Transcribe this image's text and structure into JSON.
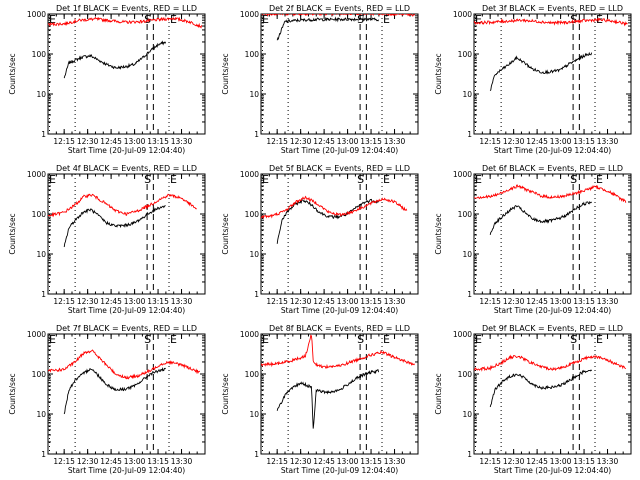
{
  "colors": {
    "events": "#000000",
    "lld": "#ff0000"
  },
  "shared": {
    "xlabel": "Start Time (20-Jul-09 12:04:40)",
    "ylabel": "Counts/sec",
    "x_ticks": [
      "12:15",
      "12:30",
      "12:45",
      "13:00",
      "13:15",
      "13:30"
    ],
    "y_ticks": [
      "1",
      "10",
      "100",
      "1000"
    ],
    "markers": {
      "dotted": [
        "E",
        "E"
      ],
      "dashed": "S"
    }
  },
  "chart_data": [
    {
      "type": "line",
      "title": "Det 1f BLACK = Events, RED = LLD",
      "ylog": true,
      "ylim": [
        1,
        1000
      ],
      "xlim": [
        "12:04:40",
        "13:45:00"
      ],
      "series": [
        {
          "name": "Events",
          "color": "#000000",
          "x": [
            "12:15",
            "12:18",
            "12:22",
            "12:27",
            "12:32",
            "12:37",
            "12:42",
            "12:48",
            "12:54",
            "13:00",
            "13:05",
            "13:10",
            "13:15",
            "13:20"
          ],
          "y": [
            25,
            60,
            70,
            85,
            90,
            70,
            55,
            45,
            48,
            55,
            80,
            120,
            170,
            200
          ]
        },
        {
          "name": "LLD",
          "color": "#ff0000",
          "x": [
            "12:04:40",
            "12:15",
            "12:25",
            "12:35",
            "12:45",
            "12:55",
            "13:05",
            "13:15",
            "13:25",
            "13:35",
            "13:43"
          ],
          "y": [
            550,
            570,
            700,
            750,
            680,
            620,
            650,
            720,
            780,
            640,
            480
          ]
        }
      ]
    },
    {
      "type": "line",
      "title": "Det 2f BLACK = Events, RED = LLD",
      "ylog": true,
      "ylim": [
        1,
        1000
      ],
      "xlim": [
        "12:04:40",
        "13:45:00"
      ],
      "series": [
        {
          "name": "Events",
          "color": "#000000",
          "x": [
            "12:15",
            "12:20",
            "12:30",
            "12:40",
            "12:50",
            "13:00",
            "13:10",
            "13:20"
          ],
          "y": [
            220,
            650,
            700,
            730,
            730,
            740,
            740,
            730
          ]
        },
        {
          "name": "LLD",
          "color": "#ff0000",
          "x": [
            "12:04:40",
            "12:20",
            "12:35",
            "12:50",
            "13:05",
            "13:20",
            "13:35",
            "13:43"
          ],
          "y": [
            1000,
            1020,
            1010,
            1030,
            1040,
            1020,
            1000,
            950
          ]
        }
      ]
    },
    {
      "type": "line",
      "title": "Det 3f BLACK = Events, RED = LLD",
      "ylog": true,
      "ylim": [
        1,
        1000
      ],
      "xlim": [
        "12:04:40",
        "13:45:00"
      ],
      "series": [
        {
          "name": "Events",
          "color": "#000000",
          "x": [
            "12:15",
            "12:18",
            "12:22",
            "12:27",
            "12:32",
            "12:37",
            "12:42",
            "12:48",
            "12:54",
            "13:00",
            "13:05",
            "13:10",
            "13:15",
            "13:20"
          ],
          "y": [
            12,
            30,
            40,
            55,
            80,
            60,
            42,
            35,
            36,
            40,
            55,
            70,
            90,
            105
          ]
        },
        {
          "name": "LLD",
          "color": "#ff0000",
          "x": [
            "12:04:40",
            "12:15",
            "12:25",
            "12:35",
            "12:45",
            "12:55",
            "13:05",
            "13:15",
            "13:25",
            "13:35",
            "13:43"
          ],
          "y": [
            600,
            620,
            660,
            700,
            650,
            600,
            620,
            680,
            720,
            650,
            550
          ]
        }
      ]
    },
    {
      "type": "line",
      "title": "Det 4f BLACK = Events, RED = LLD",
      "ylog": true,
      "ylim": [
        1,
        1000
      ],
      "xlim": [
        "12:04:40",
        "13:45:00"
      ],
      "series": [
        {
          "name": "Events",
          "color": "#000000",
          "x": [
            "12:15",
            "12:18",
            "12:22",
            "12:27",
            "12:32",
            "12:37",
            "12:42",
            "12:48",
            "12:54",
            "13:00",
            "13:05",
            "13:10",
            "13:15",
            "13:20"
          ],
          "y": [
            15,
            45,
            70,
            110,
            130,
            90,
            60,
            50,
            52,
            60,
            80,
            110,
            140,
            160
          ]
        },
        {
          "name": "LLD",
          "color": "#ff0000",
          "x": [
            "12:04:40",
            "12:15",
            "12:22",
            "12:28",
            "12:33",
            "12:40",
            "12:48",
            "12:55",
            "13:02",
            "13:10",
            "13:16",
            "13:22",
            "13:30",
            "13:40"
          ],
          "y": [
            90,
            110,
            170,
            280,
            300,
            200,
            120,
            100,
            120,
            170,
            230,
            300,
            250,
            130
          ]
        }
      ]
    },
    {
      "type": "line",
      "title": "Det 5f BLACK = Events, RED = LLD",
      "ylog": true,
      "ylim": [
        1,
        1000
      ],
      "xlim": [
        "12:04:40",
        "13:45:00"
      ],
      "series": [
        {
          "name": "Events",
          "color": "#000000",
          "x": [
            "12:15",
            "12:18",
            "12:22",
            "12:27",
            "12:32",
            "12:37",
            "12:42",
            "12:48",
            "12:54",
            "13:00",
            "13:05",
            "13:10",
            "13:15",
            "13:20"
          ],
          "y": [
            18,
            70,
            120,
            180,
            220,
            170,
            110,
            85,
            85,
            100,
            140,
            190,
            220,
            200
          ]
        },
        {
          "name": "LLD",
          "color": "#ff0000",
          "x": [
            "12:04:40",
            "12:12",
            "12:20",
            "12:27",
            "12:33",
            "12:40",
            "12:48",
            "12:55",
            "13:02",
            "13:10",
            "13:17",
            "13:23",
            "13:30",
            "13:38"
          ],
          "y": [
            85,
            90,
            120,
            200,
            260,
            190,
            110,
            95,
            110,
            150,
            200,
            240,
            200,
            120
          ]
        }
      ]
    },
    {
      "type": "line",
      "title": "Det 6f BLACK = Events, RED = LLD",
      "ylog": true,
      "ylim": [
        1,
        1000
      ],
      "xlim": [
        "12:04:40",
        "13:45:00"
      ],
      "series": [
        {
          "name": "Events",
          "color": "#000000",
          "x": [
            "12:15",
            "12:18",
            "12:22",
            "12:27",
            "12:32",
            "12:37",
            "12:42",
            "12:48",
            "12:54",
            "13:00",
            "13:05",
            "13:10",
            "13:15",
            "13:20"
          ],
          "y": [
            30,
            60,
            80,
            120,
            160,
            110,
            75,
            65,
            68,
            80,
            100,
            140,
            180,
            200
          ]
        },
        {
          "name": "LLD",
          "color": "#ff0000",
          "x": [
            "12:04:40",
            "12:15",
            "12:22",
            "12:28",
            "12:33",
            "12:40",
            "12:48",
            "12:55",
            "13:02",
            "13:10",
            "13:16",
            "13:22",
            "13:30",
            "13:42"
          ],
          "y": [
            260,
            270,
            330,
            430,
            500,
            380,
            280,
            260,
            280,
            330,
            400,
            480,
            380,
            200
          ]
        }
      ]
    },
    {
      "type": "line",
      "title": "Det 7f BLACK = Events, RED = LLD",
      "ylog": true,
      "ylim": [
        1,
        1000
      ],
      "xlim": [
        "12:04:40",
        "13:45:00"
      ],
      "series": [
        {
          "name": "Events",
          "color": "#000000",
          "x": [
            "12:15",
            "12:18",
            "12:22",
            "12:27",
            "12:32",
            "12:37",
            "12:42",
            "12:48",
            "12:54",
            "13:00",
            "13:05",
            "13:10",
            "13:15",
            "13:20"
          ],
          "y": [
            10,
            40,
            70,
            100,
            140,
            90,
            55,
            40,
            42,
            50,
            70,
            100,
            120,
            130
          ]
        },
        {
          "name": "LLD",
          "color": "#ff0000",
          "x": [
            "12:04:40",
            "12:15",
            "12:22",
            "12:28",
            "12:33",
            "12:40",
            "12:48",
            "12:55",
            "13:02",
            "13:10",
            "13:16",
            "13:22",
            "13:30",
            "13:42"
          ],
          "y": [
            120,
            130,
            200,
            350,
            380,
            200,
            100,
            80,
            90,
            120,
            170,
            200,
            170,
            110
          ]
        }
      ]
    },
    {
      "type": "line",
      "title": "Det 8f BLACK = Events, RED = LLD",
      "ylog": true,
      "ylim": [
        1,
        1000
      ],
      "xlim": [
        "12:04:40",
        "13:45:00"
      ],
      "series": [
        {
          "name": "Events",
          "color": "#000000",
          "x": [
            "12:15",
            "12:20",
            "12:25",
            "12:30",
            "12:35",
            "12:37",
            "12:38",
            "12:40",
            "12:45",
            "12:50",
            "12:55",
            "13:00",
            "13:05",
            "13:10",
            "13:15",
            "13:20"
          ],
          "y": [
            12,
            30,
            45,
            60,
            50,
            45,
            4,
            40,
            35,
            36,
            40,
            55,
            75,
            95,
            110,
            120
          ]
        },
        {
          "name": "LLD",
          "color": "#ff0000",
          "x": [
            "12:04:40",
            "12:15",
            "12:25",
            "12:33",
            "12:37",
            "12:38",
            "12:40",
            "12:45",
            "12:55",
            "13:05",
            "13:15",
            "13:22",
            "13:30",
            "13:43"
          ],
          "y": [
            170,
            180,
            220,
            280,
            1000,
            220,
            170,
            150,
            160,
            220,
            300,
            350,
            260,
            170
          ]
        }
      ]
    },
    {
      "type": "line",
      "title": "Det 9f BLACK = Events, RED = LLD",
      "ylog": true,
      "ylim": [
        1,
        1000
      ],
      "xlim": [
        "12:04:40",
        "13:45:00"
      ],
      "series": [
        {
          "name": "Events",
          "color": "#000000",
          "x": [
            "12:15",
            "12:18",
            "12:22",
            "12:27",
            "12:32",
            "12:37",
            "12:42",
            "12:48",
            "12:54",
            "13:00",
            "13:05",
            "13:10",
            "13:15",
            "13:20"
          ],
          "y": [
            15,
            40,
            60,
            85,
            100,
            80,
            55,
            45,
            46,
            52,
            65,
            90,
            115,
            130
          ]
        },
        {
          "name": "LLD",
          "color": "#ff0000",
          "x": [
            "12:04:40",
            "12:15",
            "12:22",
            "12:28",
            "12:33",
            "12:40",
            "12:48",
            "12:55",
            "13:02",
            "13:10",
            "13:16",
            "13:22",
            "13:30",
            "13:42"
          ],
          "y": [
            130,
            140,
            190,
            260,
            280,
            200,
            150,
            130,
            150,
            200,
            250,
            280,
            220,
            140
          ]
        }
      ]
    }
  ]
}
